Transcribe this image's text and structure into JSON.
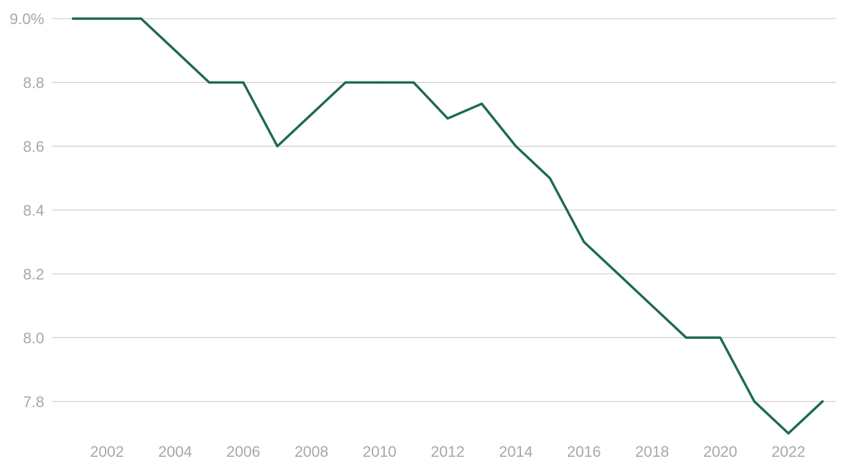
{
  "chart_data": {
    "type": "line",
    "title": "",
    "xlabel": "",
    "ylabel": "",
    "x": [
      2001,
      2002,
      2003,
      2004,
      2005,
      2006,
      2007,
      2008,
      2009,
      2010,
      2011,
      2012,
      2013,
      2014,
      2015,
      2016,
      2017,
      2018,
      2019,
      2020,
      2021,
      2022,
      2023
    ],
    "series": [
      {
        "values": [
          9.0,
          9.0,
          9.0,
          8.9,
          8.8,
          8.8,
          8.6,
          8.7,
          8.8,
          8.8,
          8.8,
          8.687,
          8.733,
          8.6,
          8.5,
          8.3,
          8.2,
          8.1,
          8.0,
          8.0,
          7.8,
          7.7,
          7.8
        ],
        "color": "#1e6b4f"
      }
    ],
    "ylim": [
      7.7,
      9.0
    ],
    "xlim": [
      2000.4,
      2023.4
    ],
    "y_ticks": [
      {
        "value": 9.0,
        "label": "9.0%"
      },
      {
        "value": 8.8,
        "label": "8.8"
      },
      {
        "value": 8.6,
        "label": "8.6"
      },
      {
        "value": 8.4,
        "label": "8.4"
      },
      {
        "value": 8.2,
        "label": "8.2"
      },
      {
        "value": 8.0,
        "label": "8.0"
      },
      {
        "value": 7.8,
        "label": "7.8"
      }
    ],
    "x_ticks": [
      {
        "value": 2002,
        "label": "2002"
      },
      {
        "value": 2004,
        "label": "2004"
      },
      {
        "value": 2006,
        "label": "2006"
      },
      {
        "value": 2008,
        "label": "2008"
      },
      {
        "value": 2010,
        "label": "2010"
      },
      {
        "value": 2012,
        "label": "2012"
      },
      {
        "value": 2014,
        "label": "2014"
      },
      {
        "value": 2016,
        "label": "2016"
      },
      {
        "value": 2018,
        "label": "2018"
      },
      {
        "value": 2020,
        "label": "2020"
      },
      {
        "value": 2022,
        "label": "2022"
      }
    ],
    "grid": true,
    "legend": "none"
  }
}
